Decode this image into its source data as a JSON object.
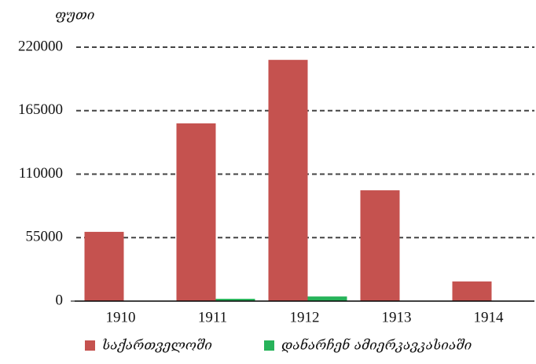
{
  "chart_data": {
    "type": "bar",
    "y_label": "ფუთი",
    "categories": [
      "1910",
      "1911",
      "1912",
      "1913",
      "1914"
    ],
    "series": [
      {
        "name": "საქართველოში",
        "color": "#c5524f",
        "values": [
          60000,
          154000,
          209000,
          96000,
          17000
        ]
      },
      {
        "name": "დანარჩენ ამიერკავკასიაში",
        "color": "#27b35a",
        "values": [
          0,
          2000,
          4000,
          0,
          0
        ]
      }
    ],
    "ylim": [
      0,
      220000
    ],
    "yticks": [
      0,
      55000,
      110000,
      165000,
      220000
    ],
    "grid": true,
    "legend": "bottom"
  }
}
